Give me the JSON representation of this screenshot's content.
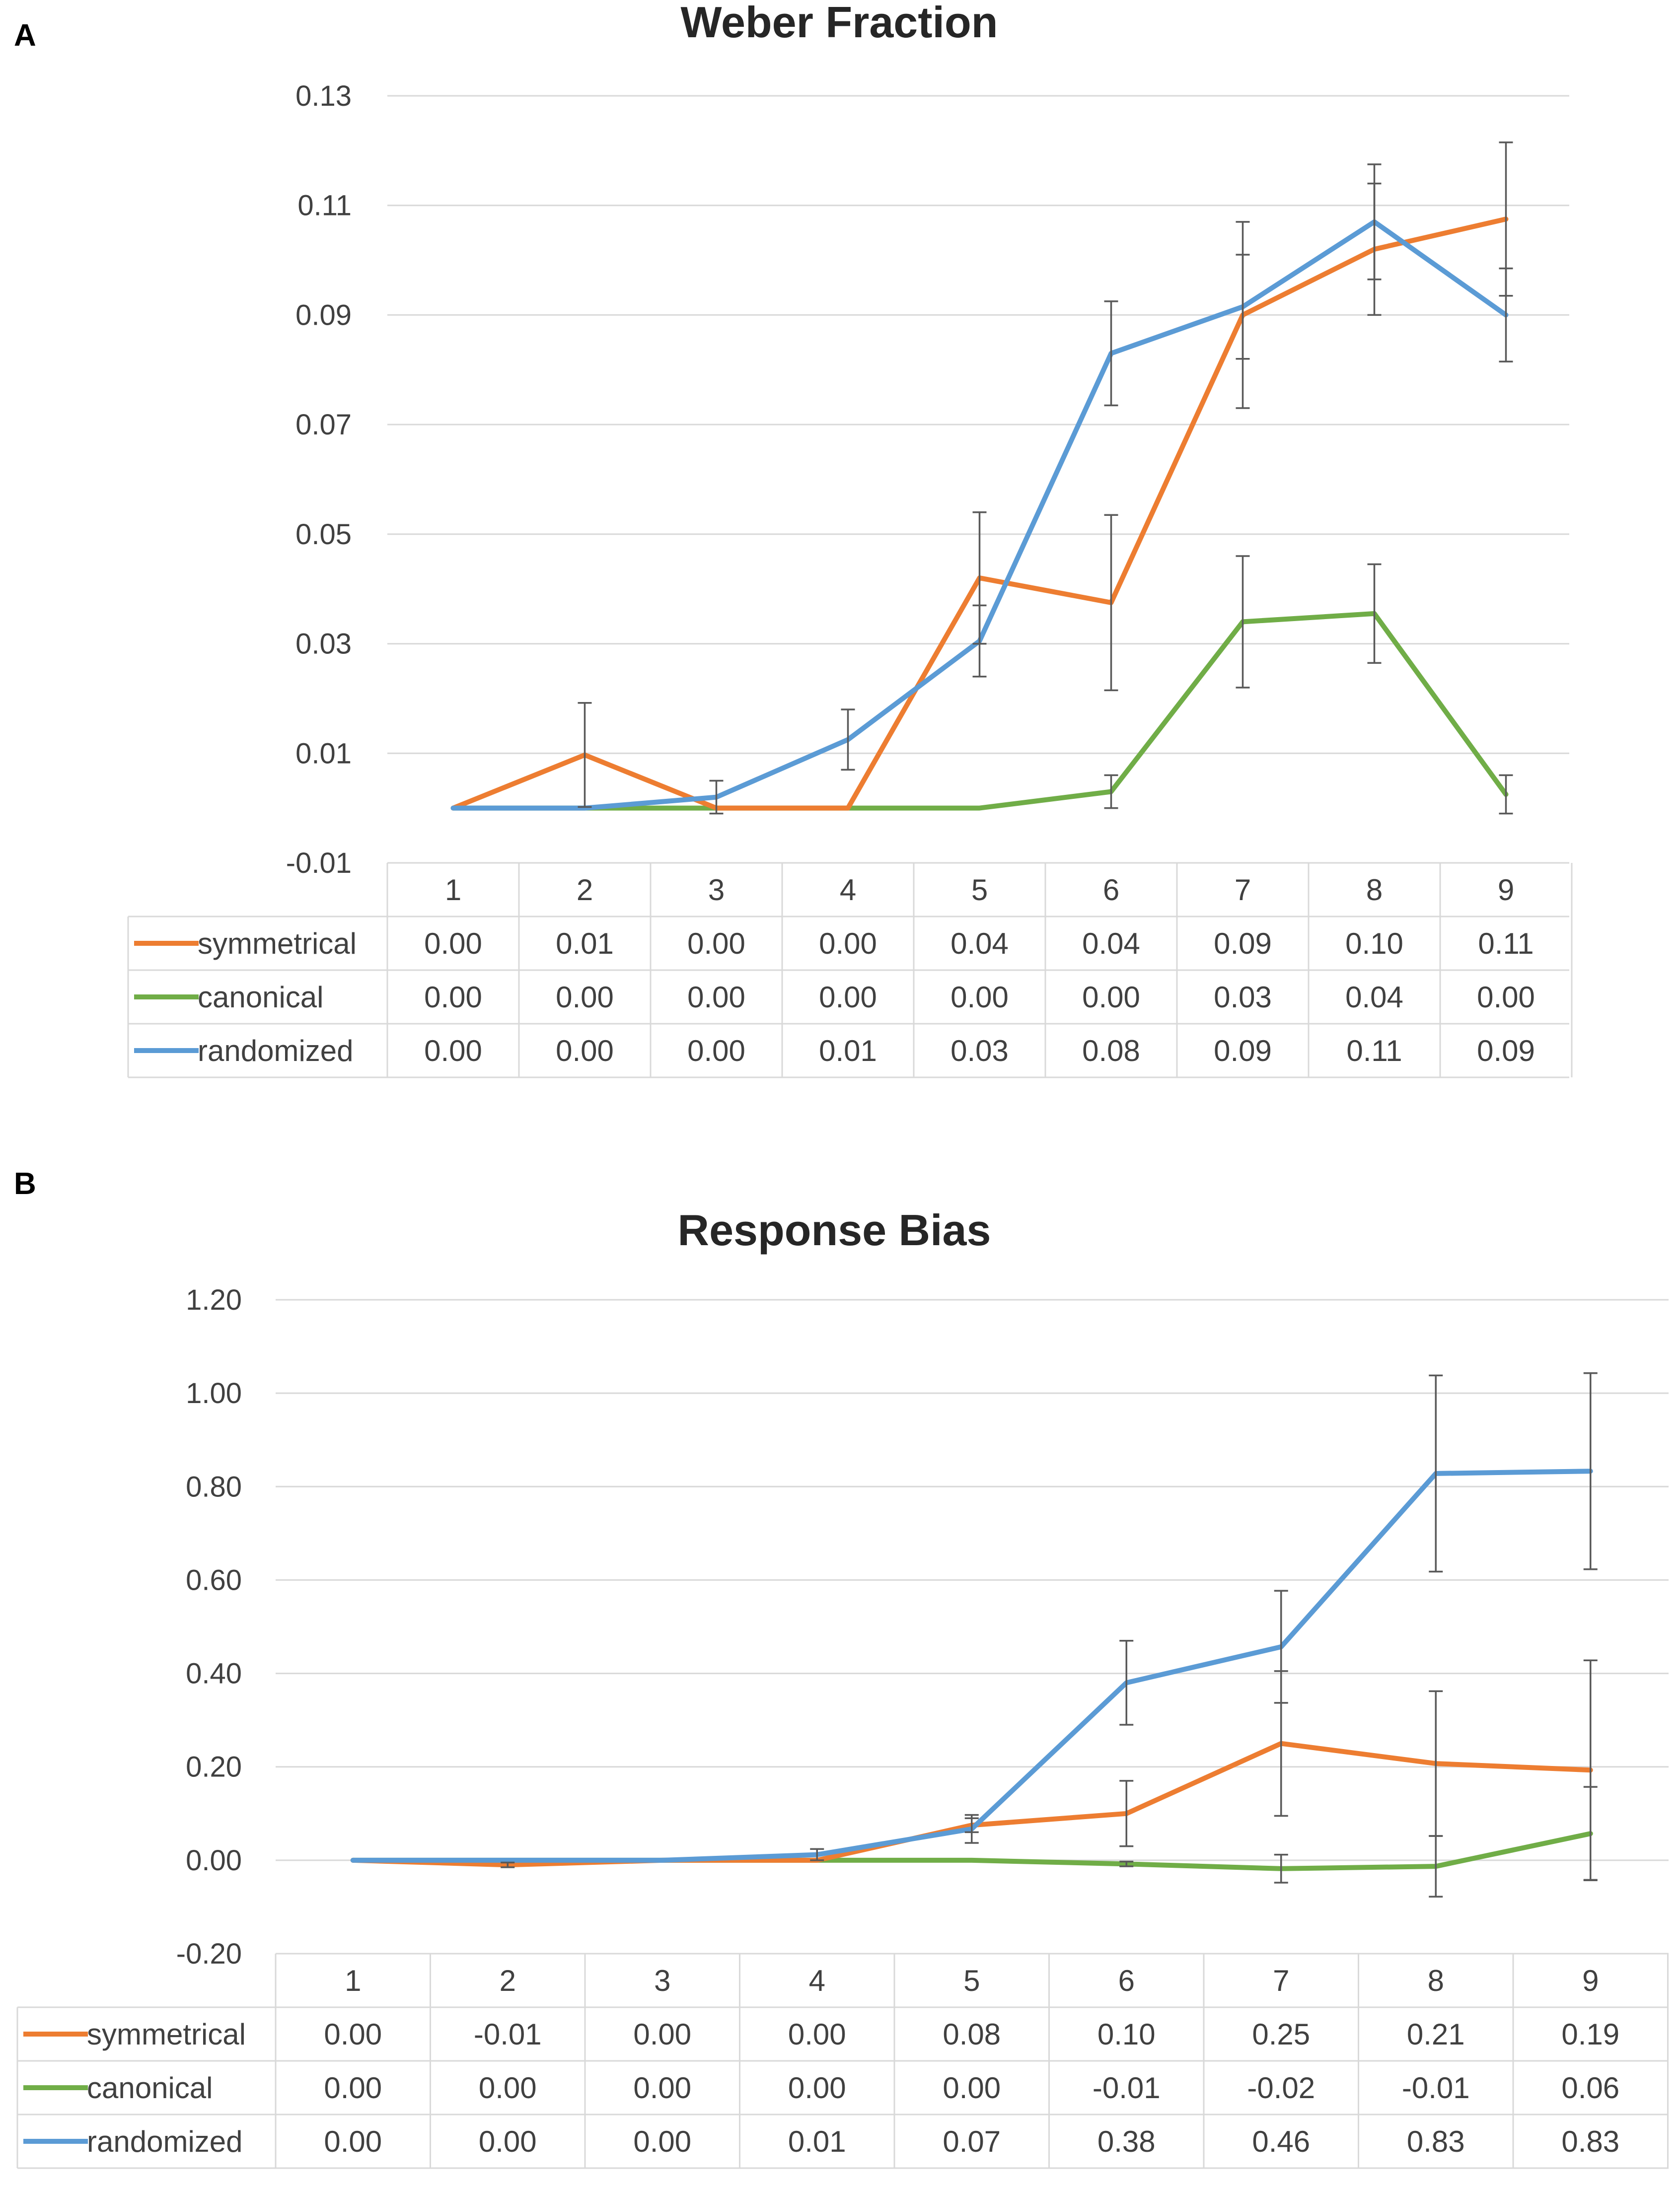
{
  "colors": {
    "symmetrical": "#ed7d31",
    "canonical": "#70ad47",
    "randomized": "#5b9bd5"
  },
  "chart_data": [
    {
      "panel_label": "A",
      "type": "line",
      "title": "Weber Fraction",
      "xlabel": "",
      "ylabel": "",
      "categories": [
        "1",
        "2",
        "3",
        "4",
        "5",
        "6",
        "7",
        "8",
        "9"
      ],
      "ylim": [
        -0.01,
        0.13
      ],
      "yticks": [
        -0.01,
        0.01,
        0.03,
        0.05,
        0.07,
        0.09,
        0.11,
        0.13
      ],
      "ytick_labels": [
        "-0.01",
        "0.01",
        "0.03",
        "0.05",
        "0.07",
        "0.09",
        "0.11",
        "0.13"
      ],
      "grid": true,
      "legend": "data-table-below",
      "series": [
        {
          "name": "symmetrical",
          "color_key": "symmetrical",
          "values": [
            0.0,
            0.0097,
            0.0,
            0.0,
            0.042,
            0.0375,
            0.09,
            0.102,
            0.1075
          ],
          "errors": [
            0,
            0.0095,
            0,
            0,
            0.012,
            0.016,
            0.017,
            0.012,
            0.014
          ],
          "table_values": [
            "0.00",
            "0.01",
            "0.00",
            "0.00",
            "0.04",
            "0.04",
            "0.09",
            "0.10",
            "0.11"
          ]
        },
        {
          "name": "canonical",
          "color_key": "canonical",
          "values": [
            0.0,
            0.0,
            0.0,
            0.0,
            0.0,
            0.003,
            0.034,
            0.0355,
            0.0025
          ],
          "errors": [
            0,
            0,
            0,
            0,
            0,
            0.003,
            0.012,
            0.009,
            0.0035
          ],
          "table_values": [
            "0.00",
            "0.00",
            "0.00",
            "0.00",
            "0.00",
            "0.00",
            "0.03",
            "0.04",
            "0.00"
          ]
        },
        {
          "name": "randomized",
          "color_key": "randomized",
          "values": [
            0.0,
            0.0,
            0.002,
            0.0125,
            0.0305,
            0.083,
            0.0915,
            0.107,
            0.09
          ],
          "errors": [
            0,
            0,
            0.003,
            0.0055,
            0.0065,
            0.0095,
            0.0095,
            0.0105,
            0.0085
          ],
          "table_values": [
            "0.00",
            "0.00",
            "0.00",
            "0.01",
            "0.03",
            "0.08",
            "0.09",
            "0.11",
            "0.09"
          ]
        }
      ]
    },
    {
      "panel_label": "B",
      "type": "line",
      "title": "Response Bias",
      "xlabel": "",
      "ylabel": "",
      "categories": [
        "1",
        "2",
        "3",
        "4",
        "5",
        "6",
        "7",
        "8",
        "9"
      ],
      "ylim": [
        -0.2,
        1.2
      ],
      "yticks": [
        -0.2,
        0.0,
        0.2,
        0.4,
        0.6,
        0.8,
        1.0,
        1.2
      ],
      "ytick_labels": [
        "-0.20",
        "0.00",
        "0.20",
        "0.40",
        "0.60",
        "0.80",
        "1.00",
        "1.20"
      ],
      "grid": true,
      "legend": "data-table-below",
      "series": [
        {
          "name": "symmetrical",
          "color_key": "symmetrical",
          "values": [
            0.0,
            -0.01,
            0.0,
            0.0,
            0.075,
            0.1,
            0.25,
            0.207,
            0.193
          ],
          "errors": [
            0,
            0.005,
            0,
            0,
            0.015,
            0.07,
            0.155,
            0.155,
            0.235
          ],
          "table_values": [
            "0.00",
            "-0.01",
            "0.00",
            "0.00",
            "0.08",
            "0.10",
            "0.25",
            "0.21",
            "0.19"
          ]
        },
        {
          "name": "canonical",
          "color_key": "canonical",
          "values": [
            0.0,
            0.0,
            0.0,
            0.0,
            0.0,
            -0.008,
            -0.018,
            -0.013,
            0.057
          ],
          "errors": [
            0,
            0,
            0,
            0,
            0,
            0.005,
            0.03,
            0.065,
            0.1
          ],
          "table_values": [
            "0.00",
            "0.00",
            "0.00",
            "0.00",
            "0.00",
            "-0.01",
            "-0.02",
            "-0.01",
            "0.06"
          ]
        },
        {
          "name": "randomized",
          "color_key": "randomized",
          "values": [
            0.0,
            0.0,
            0.0,
            0.012,
            0.067,
            0.38,
            0.457,
            0.828,
            0.833
          ],
          "errors": [
            0,
            0,
            0,
            0.012,
            0.03,
            0.09,
            0.12,
            0.21,
            0.21
          ],
          "table_values": [
            "0.00",
            "0.00",
            "0.00",
            "0.01",
            "0.07",
            "0.38",
            "0.46",
            "0.83",
            "0.83"
          ]
        }
      ]
    }
  ]
}
